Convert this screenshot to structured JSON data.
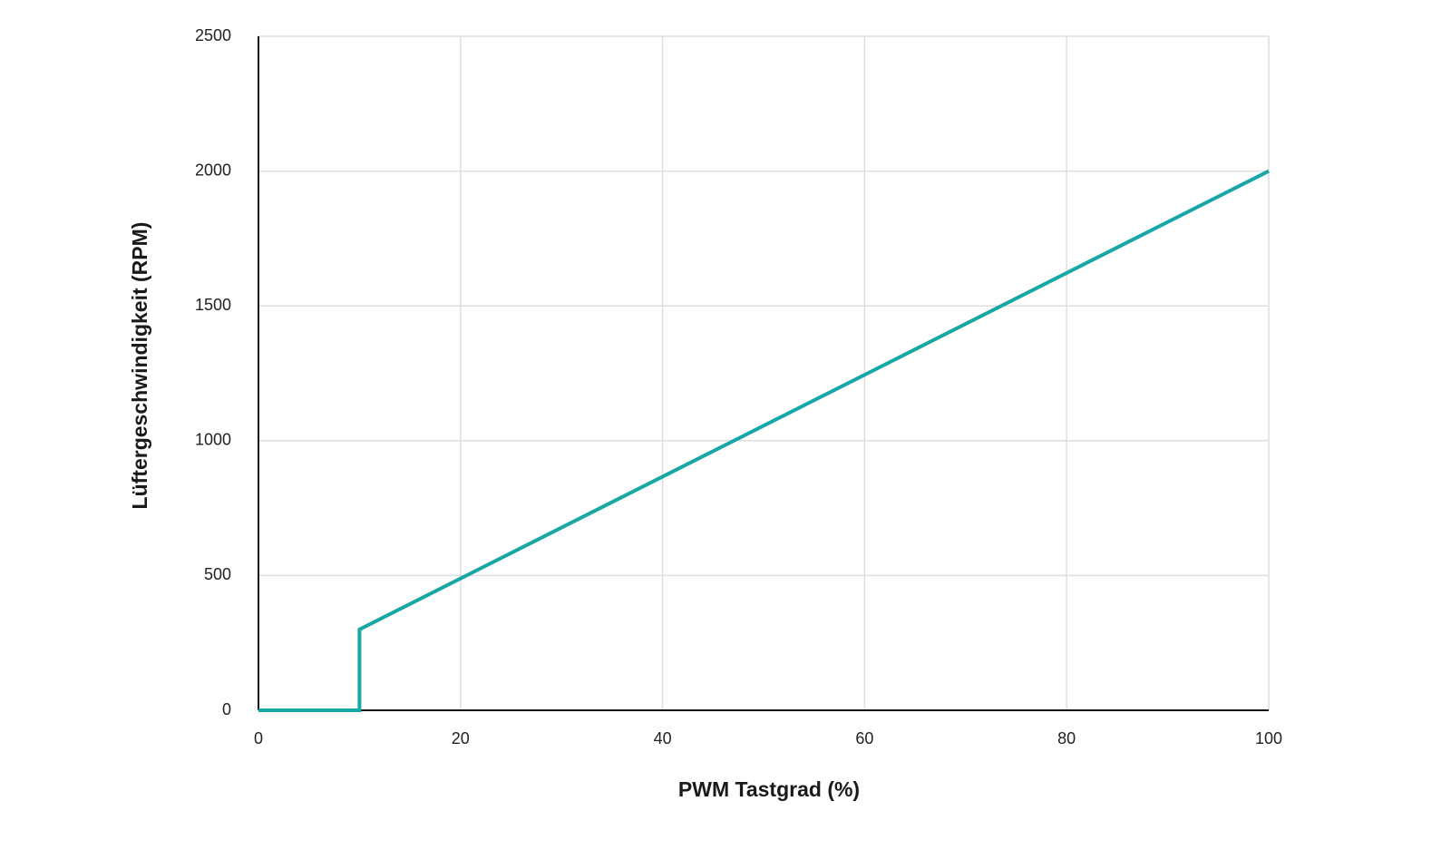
{
  "chart_data": {
    "type": "line",
    "x_label": "PWM Tastgrad (%)",
    "y_label": "Lüftergeschwindigkeit (RPM)",
    "x": [
      0,
      10,
      10,
      100
    ],
    "values": [
      0,
      0,
      300,
      2000
    ],
    "color": "#17a8a6",
    "xlim": [
      0,
      100
    ],
    "xticks": [
      0,
      20,
      40,
      60,
      80,
      100
    ],
    "ylim": [
      0,
      2500
    ],
    "yticks": [
      0,
      500,
      1000,
      1500,
      2000,
      2500
    ],
    "grid": true
  }
}
